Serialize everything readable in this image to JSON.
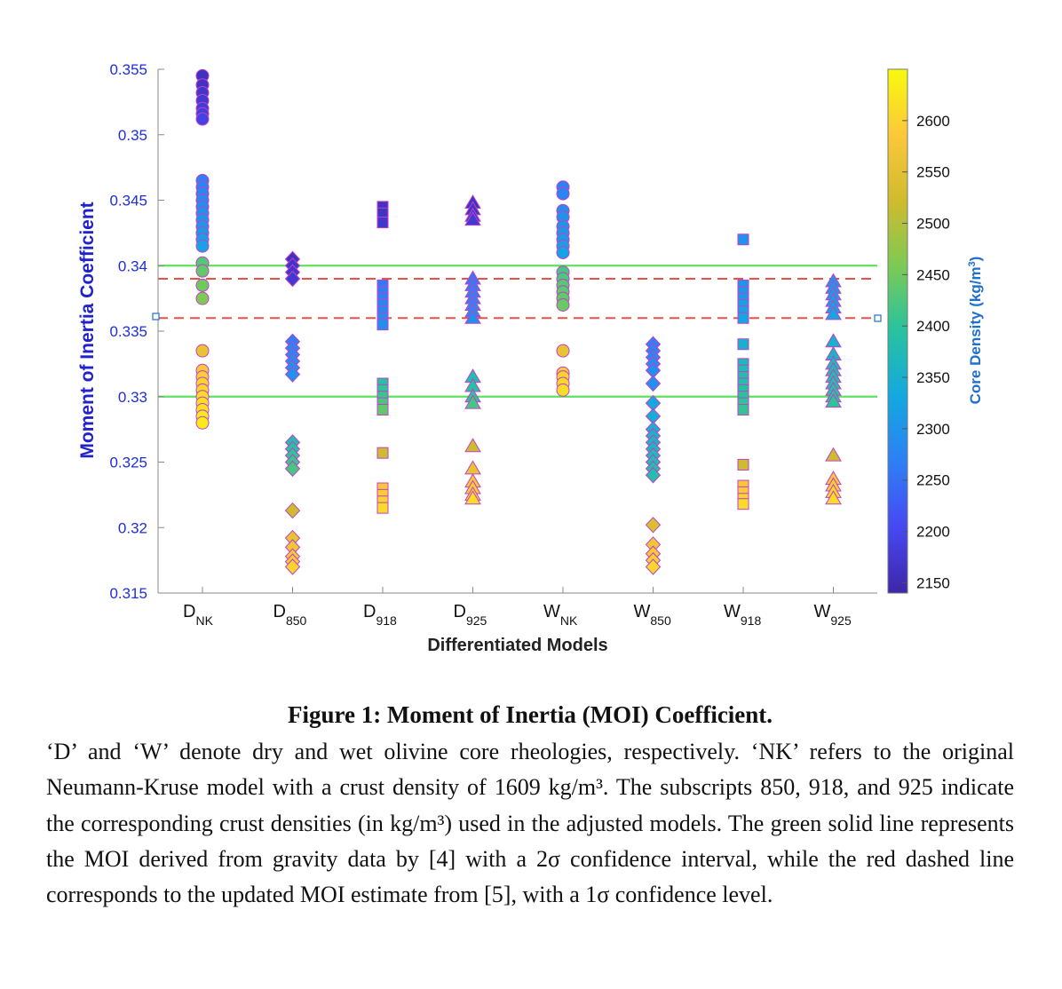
{
  "chart_data": {
    "type": "scatter",
    "xlabel": "Differentiated Models",
    "ylabel": "Moment of Inertia Coefficient",
    "ylim": [
      0.315,
      0.355
    ],
    "yticks": [
      "0.315",
      "0.32",
      "0.325",
      "0.33",
      "0.335",
      "0.34",
      "0.345",
      "0.35",
      "0.355"
    ],
    "categories": [
      {
        "base": "D",
        "sub": "NK",
        "marker": "circle"
      },
      {
        "base": "D",
        "sub": "850",
        "marker": "diamond"
      },
      {
        "base": "D",
        "sub": "918",
        "marker": "square"
      },
      {
        "base": "D",
        "sub": "925",
        "marker": "triangle"
      },
      {
        "base": "W",
        "sub": "NK",
        "marker": "circle"
      },
      {
        "base": "W",
        "sub": "850",
        "marker": "diamond"
      },
      {
        "base": "W",
        "sub": "918",
        "marker": "square"
      },
      {
        "base": "W",
        "sub": "925",
        "marker": "triangle"
      }
    ],
    "colorbar": {
      "label": "Core Density (kg/m³)",
      "label_prefix": "Core Density (kg/m",
      "label_sup": "3",
      "label_suffix": ")",
      "range": [
        2140,
        2650
      ],
      "ticks": [
        "2150",
        "2200",
        "2250",
        "2300",
        "2350",
        "2400",
        "2450",
        "2500",
        "2550",
        "2600"
      ]
    },
    "reference_lines": [
      {
        "name": "MOI from gravity data [4], 2σ",
        "style": "solid",
        "color": "#5fe05f",
        "values": [
          0.33,
          0.34
        ]
      },
      {
        "name": "Updated MOI estimate [5], 1σ",
        "style": "dashed",
        "color": "#e8504a",
        "values": [
          0.336,
          0.339
        ]
      }
    ],
    "series": [
      {
        "name": "DNK",
        "points": [
          [
            0.3545,
            2160
          ],
          [
            0.3538,
            2165
          ],
          [
            0.3532,
            2170
          ],
          [
            0.3526,
            2175
          ],
          [
            0.352,
            2180
          ],
          [
            0.3516,
            2185
          ],
          [
            0.3512,
            2190
          ],
          [
            0.3465,
            2270
          ],
          [
            0.346,
            2275
          ],
          [
            0.3455,
            2280
          ],
          [
            0.345,
            2285
          ],
          [
            0.3445,
            2290
          ],
          [
            0.344,
            2295
          ],
          [
            0.3435,
            2300
          ],
          [
            0.343,
            2305
          ],
          [
            0.3425,
            2310
          ],
          [
            0.342,
            2315
          ],
          [
            0.3415,
            2320
          ],
          [
            0.3402,
            2430
          ],
          [
            0.3396,
            2440
          ],
          [
            0.3385,
            2450
          ],
          [
            0.3375,
            2460
          ],
          [
            0.3335,
            2560
          ],
          [
            0.332,
            2580
          ],
          [
            0.3315,
            2590
          ],
          [
            0.331,
            2600
          ],
          [
            0.3305,
            2605
          ],
          [
            0.33,
            2610
          ],
          [
            0.3295,
            2615
          ],
          [
            0.329,
            2620
          ],
          [
            0.3285,
            2625
          ],
          [
            0.328,
            2630
          ]
        ]
      },
      {
        "name": "D850",
        "points": [
          [
            0.3405,
            2160
          ],
          [
            0.34,
            2165
          ],
          [
            0.3395,
            2170
          ],
          [
            0.339,
            2175
          ],
          [
            0.3342,
            2270
          ],
          [
            0.3337,
            2275
          ],
          [
            0.3332,
            2280
          ],
          [
            0.3327,
            2285
          ],
          [
            0.3322,
            2290
          ],
          [
            0.3317,
            2295
          ],
          [
            0.3265,
            2380
          ],
          [
            0.326,
            2390
          ],
          [
            0.3255,
            2400
          ],
          [
            0.325,
            2410
          ],
          [
            0.3245,
            2420
          ],
          [
            0.3213,
            2520
          ],
          [
            0.3192,
            2560
          ],
          [
            0.3185,
            2570
          ],
          [
            0.3178,
            2580
          ],
          [
            0.3174,
            2590
          ],
          [
            0.317,
            2600
          ]
        ]
      },
      {
        "name": "D918",
        "points": [
          [
            0.3445,
            2160
          ],
          [
            0.344,
            2165
          ],
          [
            0.3433,
            2170
          ],
          [
            0.3385,
            2260
          ],
          [
            0.338,
            2265
          ],
          [
            0.3375,
            2270
          ],
          [
            0.337,
            2275
          ],
          [
            0.3365,
            2280
          ],
          [
            0.336,
            2285
          ],
          [
            0.3355,
            2290
          ],
          [
            0.331,
            2390
          ],
          [
            0.3305,
            2400
          ],
          [
            0.33,
            2410
          ],
          [
            0.3295,
            2420
          ],
          [
            0.329,
            2440
          ],
          [
            0.3257,
            2520
          ],
          [
            0.323,
            2580
          ],
          [
            0.3225,
            2590
          ],
          [
            0.322,
            2600
          ],
          [
            0.3215,
            2610
          ]
        ]
      },
      {
        "name": "D925",
        "points": [
          [
            0.3448,
            2160
          ],
          [
            0.3443,
            2165
          ],
          [
            0.3438,
            2170
          ],
          [
            0.3435,
            2175
          ],
          [
            0.339,
            2260
          ],
          [
            0.3385,
            2265
          ],
          [
            0.338,
            2270
          ],
          [
            0.3375,
            2275
          ],
          [
            0.337,
            2280
          ],
          [
            0.3365,
            2285
          ],
          [
            0.336,
            2290
          ],
          [
            0.3315,
            2380
          ],
          [
            0.3308,
            2390
          ],
          [
            0.33,
            2400
          ],
          [
            0.3295,
            2420
          ],
          [
            0.3262,
            2520
          ],
          [
            0.3245,
            2560
          ],
          [
            0.3235,
            2580
          ],
          [
            0.323,
            2590
          ],
          [
            0.3225,
            2600
          ],
          [
            0.3222,
            2610
          ]
        ]
      },
      {
        "name": "WNK",
        "points": [
          [
            0.346,
            2270
          ],
          [
            0.3455,
            2275
          ],
          [
            0.3442,
            2290
          ],
          [
            0.3437,
            2295
          ],
          [
            0.343,
            2300
          ],
          [
            0.3425,
            2305
          ],
          [
            0.342,
            2310
          ],
          [
            0.3415,
            2315
          ],
          [
            0.341,
            2320
          ],
          [
            0.3395,
            2420
          ],
          [
            0.339,
            2425
          ],
          [
            0.3385,
            2430
          ],
          [
            0.338,
            2435
          ],
          [
            0.3375,
            2440
          ],
          [
            0.337,
            2445
          ],
          [
            0.3335,
            2560
          ],
          [
            0.3318,
            2590
          ],
          [
            0.3315,
            2600
          ],
          [
            0.331,
            2605
          ],
          [
            0.3305,
            2610
          ]
        ]
      },
      {
        "name": "W850",
        "points": [
          [
            0.334,
            2270
          ],
          [
            0.3335,
            2275
          ],
          [
            0.333,
            2280
          ],
          [
            0.3325,
            2285
          ],
          [
            0.332,
            2290
          ],
          [
            0.331,
            2295
          ],
          [
            0.3295,
            2330
          ],
          [
            0.3285,
            2340
          ],
          [
            0.3275,
            2350
          ],
          [
            0.327,
            2355
          ],
          [
            0.3265,
            2360
          ],
          [
            0.326,
            2365
          ],
          [
            0.3255,
            2370
          ],
          [
            0.325,
            2375
          ],
          [
            0.3245,
            2380
          ],
          [
            0.324,
            2385
          ],
          [
            0.3202,
            2540
          ],
          [
            0.3187,
            2570
          ],
          [
            0.318,
            2585
          ],
          [
            0.3175,
            2595
          ],
          [
            0.317,
            2605
          ]
        ]
      },
      {
        "name": "W918",
        "points": [
          [
            0.342,
            2300
          ],
          [
            0.3385,
            2300
          ],
          [
            0.338,
            2305
          ],
          [
            0.3375,
            2310
          ],
          [
            0.337,
            2315
          ],
          [
            0.3365,
            2320
          ],
          [
            0.336,
            2325
          ],
          [
            0.334,
            2350
          ],
          [
            0.3325,
            2370
          ],
          [
            0.332,
            2375
          ],
          [
            0.3315,
            2380
          ],
          [
            0.331,
            2385
          ],
          [
            0.3305,
            2390
          ],
          [
            0.33,
            2395
          ],
          [
            0.3295,
            2400
          ],
          [
            0.329,
            2405
          ],
          [
            0.3248,
            2520
          ],
          [
            0.3232,
            2580
          ],
          [
            0.3227,
            2590
          ],
          [
            0.3222,
            2600
          ],
          [
            0.3218,
            2610
          ]
        ]
      },
      {
        "name": "W925",
        "points": [
          [
            0.3388,
            2300
          ],
          [
            0.3383,
            2305
          ],
          [
            0.3378,
            2310
          ],
          [
            0.3373,
            2315
          ],
          [
            0.3368,
            2320
          ],
          [
            0.3363,
            2325
          ],
          [
            0.3342,
            2350
          ],
          [
            0.3332,
            2360
          ],
          [
            0.3325,
            2370
          ],
          [
            0.332,
            2375
          ],
          [
            0.3315,
            2380
          ],
          [
            0.331,
            2385
          ],
          [
            0.3305,
            2390
          ],
          [
            0.33,
            2395
          ],
          [
            0.3296,
            2400
          ],
          [
            0.3255,
            2520
          ],
          [
            0.3237,
            2580
          ],
          [
            0.3232,
            2590
          ],
          [
            0.3227,
            2600
          ],
          [
            0.3222,
            2610
          ]
        ]
      }
    ]
  },
  "caption": {
    "title": "Figure 1: Moment of Inertia (MOI) Coefficient.",
    "body": "‘D’ and ‘W’ denote dry and wet olivine core rheologies, respectively. ‘NK’ refers to the original Neumann-Kruse model with a crust density of 1609 kg/m³. The subscripts 850, 918, and 925 indicate the corresponding crust densities (in kg/m³) used in the adjusted models. The green solid line represents the MOI derived from gravity data by [4] with a 2σ confidence interval, while the red dashed line corresponds to the updated MOI estimate from [5], with a 1σ confidence level."
  }
}
